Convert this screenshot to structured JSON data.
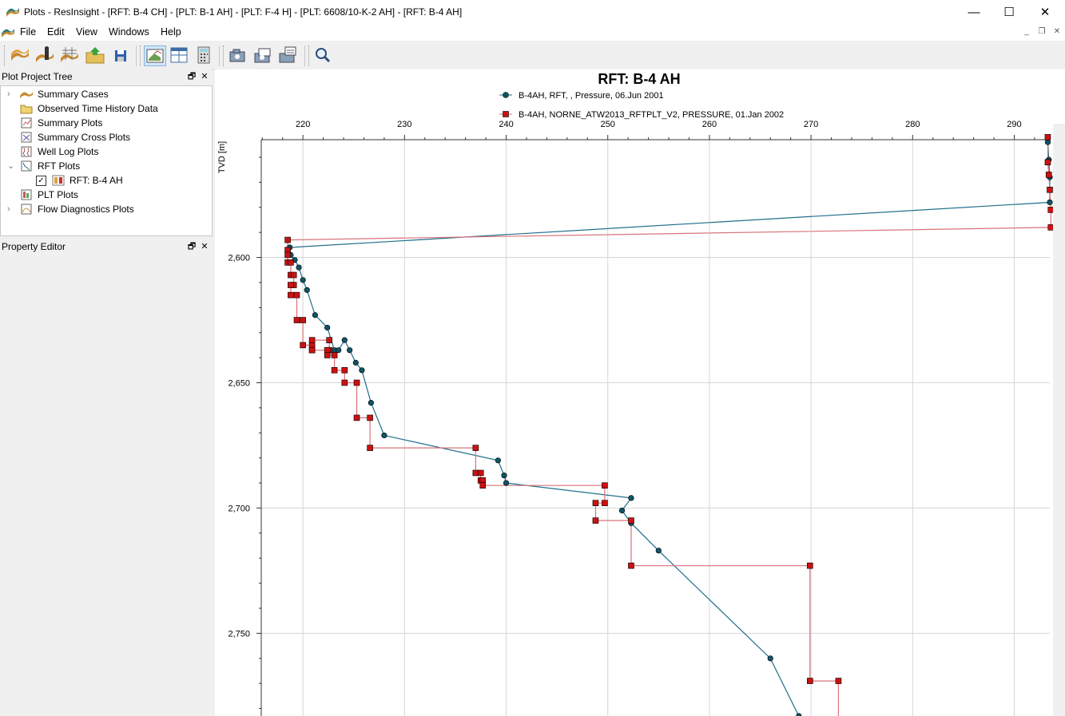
{
  "window": {
    "title": "Plots - ResInsight - [RFT: B-4 CH] - [PLT: B-1 AH] - [PLT: F-4 H] - [PLT: 6608/10-K-2 AH] - [RFT: B-4 AH]",
    "minimize": "—",
    "maximize": "☐",
    "close": "✕"
  },
  "menu": {
    "items": [
      "File",
      "Edit",
      "View",
      "Windows",
      "Help"
    ]
  },
  "mdi": {
    "minimize": "_",
    "restore": "❐",
    "close": "✕"
  },
  "toolbar": {
    "buttons": [
      "open-summary-icon",
      "import-well-log-icon",
      "import-cases-icon",
      "open-project-icon",
      "save-project-icon",
      "3d-view-icon",
      "tile-windows-icon",
      "calculator-icon",
      "snapshot-icon",
      "snapshot-all-icon",
      "snapshot-all-views-icon",
      "zoom-all-icon"
    ]
  },
  "project_tree": {
    "title": "Plot Project Tree",
    "items": [
      {
        "label": "Summary Cases",
        "expander": "›",
        "icon": "summary-cases-icon"
      },
      {
        "label": "Observed Time History Data",
        "expander": "",
        "icon": "folder-icon"
      },
      {
        "label": "Summary Plots",
        "expander": "",
        "icon": "summary-plot-icon"
      },
      {
        "label": "Summary Cross Plots",
        "expander": "",
        "icon": "cross-plot-icon"
      },
      {
        "label": "Well Log Plots",
        "expander": "",
        "icon": "well-log-plot-icon"
      },
      {
        "label": "RFT Plots",
        "expander": "⌄",
        "icon": "rft-plot-icon"
      },
      {
        "label": "RFT: B-4 AH",
        "expander": "",
        "icon": "rft-item-icon",
        "checked": true
      },
      {
        "label": "PLT Plots",
        "expander": "",
        "icon": "plt-plot-icon"
      },
      {
        "label": "Flow Diagnostics Plots",
        "expander": "›",
        "icon": "flow-diag-icon"
      }
    ],
    "scroll_left": "‹",
    "scroll_right": "›",
    "check_mark": "✓"
  },
  "property_editor": {
    "title": "Property Editor"
  },
  "panel_buttons": {
    "float": "🗗",
    "close": "✕"
  },
  "chart_data": {
    "type": "line",
    "title": "RFT: B-4 AH",
    "xlabel": "",
    "ylabel": "TVD [m]",
    "xlim": [
      215.9,
      293.5
    ],
    "ylim": [
      2553,
      2783
    ],
    "x_ticks": [
      220,
      230,
      240,
      250,
      260,
      270,
      280,
      290
    ],
    "y_ticks": [
      2550,
      2600,
      2650,
      2700,
      2750
    ],
    "x_tick_labels": [
      "220",
      "230",
      "240",
      "250",
      "260",
      "270",
      "280",
      "290"
    ],
    "y_tick_labels": [
      "2,550",
      "2,600",
      "2,650",
      "2,700",
      "2,750"
    ],
    "grid": true,
    "x_axis_position": "top",
    "y_axis_inverted": true,
    "series": [
      {
        "name": "B-4AH, RFT, , Pressure, 06.Jun 2001",
        "color": "#1f6e8c",
        "marker": "circle",
        "marker_color": "#0e5566",
        "points": [
          [
            293.3,
            2554
          ],
          [
            293.4,
            2561
          ],
          [
            293.5,
            2568
          ],
          [
            293.5,
            2578
          ],
          [
            218.7,
            2596
          ],
          [
            218.8,
            2599
          ],
          [
            219.2,
            2601
          ],
          [
            219.6,
            2604
          ],
          [
            220.0,
            2609
          ],
          [
            220.4,
            2613
          ],
          [
            221.2,
            2623
          ],
          [
            222.4,
            2628
          ],
          [
            223.1,
            2637
          ],
          [
            223.5,
            2637
          ],
          [
            224.1,
            2633
          ],
          [
            224.6,
            2637
          ],
          [
            225.2,
            2642
          ],
          [
            225.8,
            2645
          ],
          [
            226.7,
            2658
          ],
          [
            228.0,
            2671
          ],
          [
            239.2,
            2681
          ],
          [
            239.8,
            2687
          ],
          [
            240.0,
            2690
          ],
          [
            252.3,
            2696
          ],
          [
            251.4,
            2701
          ],
          [
            252.3,
            2706
          ],
          [
            255.0,
            2717
          ],
          [
            266.0,
            2760
          ],
          [
            268.8,
            2783
          ]
        ]
      },
      {
        "name": "B-4AH, NORNE_ATW2013_RFTPLT_V2, PRESSURE, 01.Jan 2002",
        "color": "#d9737a",
        "marker": "square",
        "marker_color": "#cc1111",
        "points": [
          [
            293.3,
            2552
          ],
          [
            293.3,
            2562
          ],
          [
            293.4,
            2567
          ],
          [
            293.5,
            2573
          ],
          [
            293.6,
            2581
          ],
          [
            293.6,
            2588
          ],
          [
            218.5,
            2593
          ],
          [
            218.5,
            2597
          ],
          [
            218.5,
            2599
          ],
          [
            218.5,
            2602
          ],
          [
            218.8,
            2602
          ],
          [
            218.8,
            2607
          ],
          [
            219.1,
            2607
          ],
          [
            219.1,
            2611
          ],
          [
            218.8,
            2611
          ],
          [
            218.8,
            2615
          ],
          [
            219.4,
            2615
          ],
          [
            219.4,
            2625
          ],
          [
            220.0,
            2625
          ],
          [
            220.0,
            2635
          ],
          [
            220.9,
            2635
          ],
          [
            220.9,
            2637
          ],
          [
            222.6,
            2637
          ],
          [
            222.6,
            2633
          ],
          [
            220.9,
            2633
          ],
          [
            220.9,
            2637
          ],
          [
            222.4,
            2637
          ],
          [
            222.4,
            2639
          ],
          [
            223.1,
            2639
          ],
          [
            223.1,
            2645
          ],
          [
            224.1,
            2645
          ],
          [
            224.1,
            2650
          ],
          [
            225.3,
            2650
          ],
          [
            225.3,
            2664
          ],
          [
            226.6,
            2664
          ],
          [
            226.6,
            2676
          ],
          [
            237.0,
            2676
          ],
          [
            237.0,
            2686
          ],
          [
            237.5,
            2686
          ],
          [
            237.5,
            2689
          ],
          [
            237.7,
            2689
          ],
          [
            237.7,
            2691
          ],
          [
            249.7,
            2691
          ],
          [
            249.7,
            2698
          ],
          [
            248.8,
            2698
          ],
          [
            248.8,
            2705
          ],
          [
            252.3,
            2705
          ],
          [
            252.3,
            2723
          ],
          [
            269.9,
            2723
          ],
          [
            269.9,
            2769
          ],
          [
            272.7,
            2769
          ],
          [
            272.7,
            2787
          ]
        ]
      }
    ]
  }
}
